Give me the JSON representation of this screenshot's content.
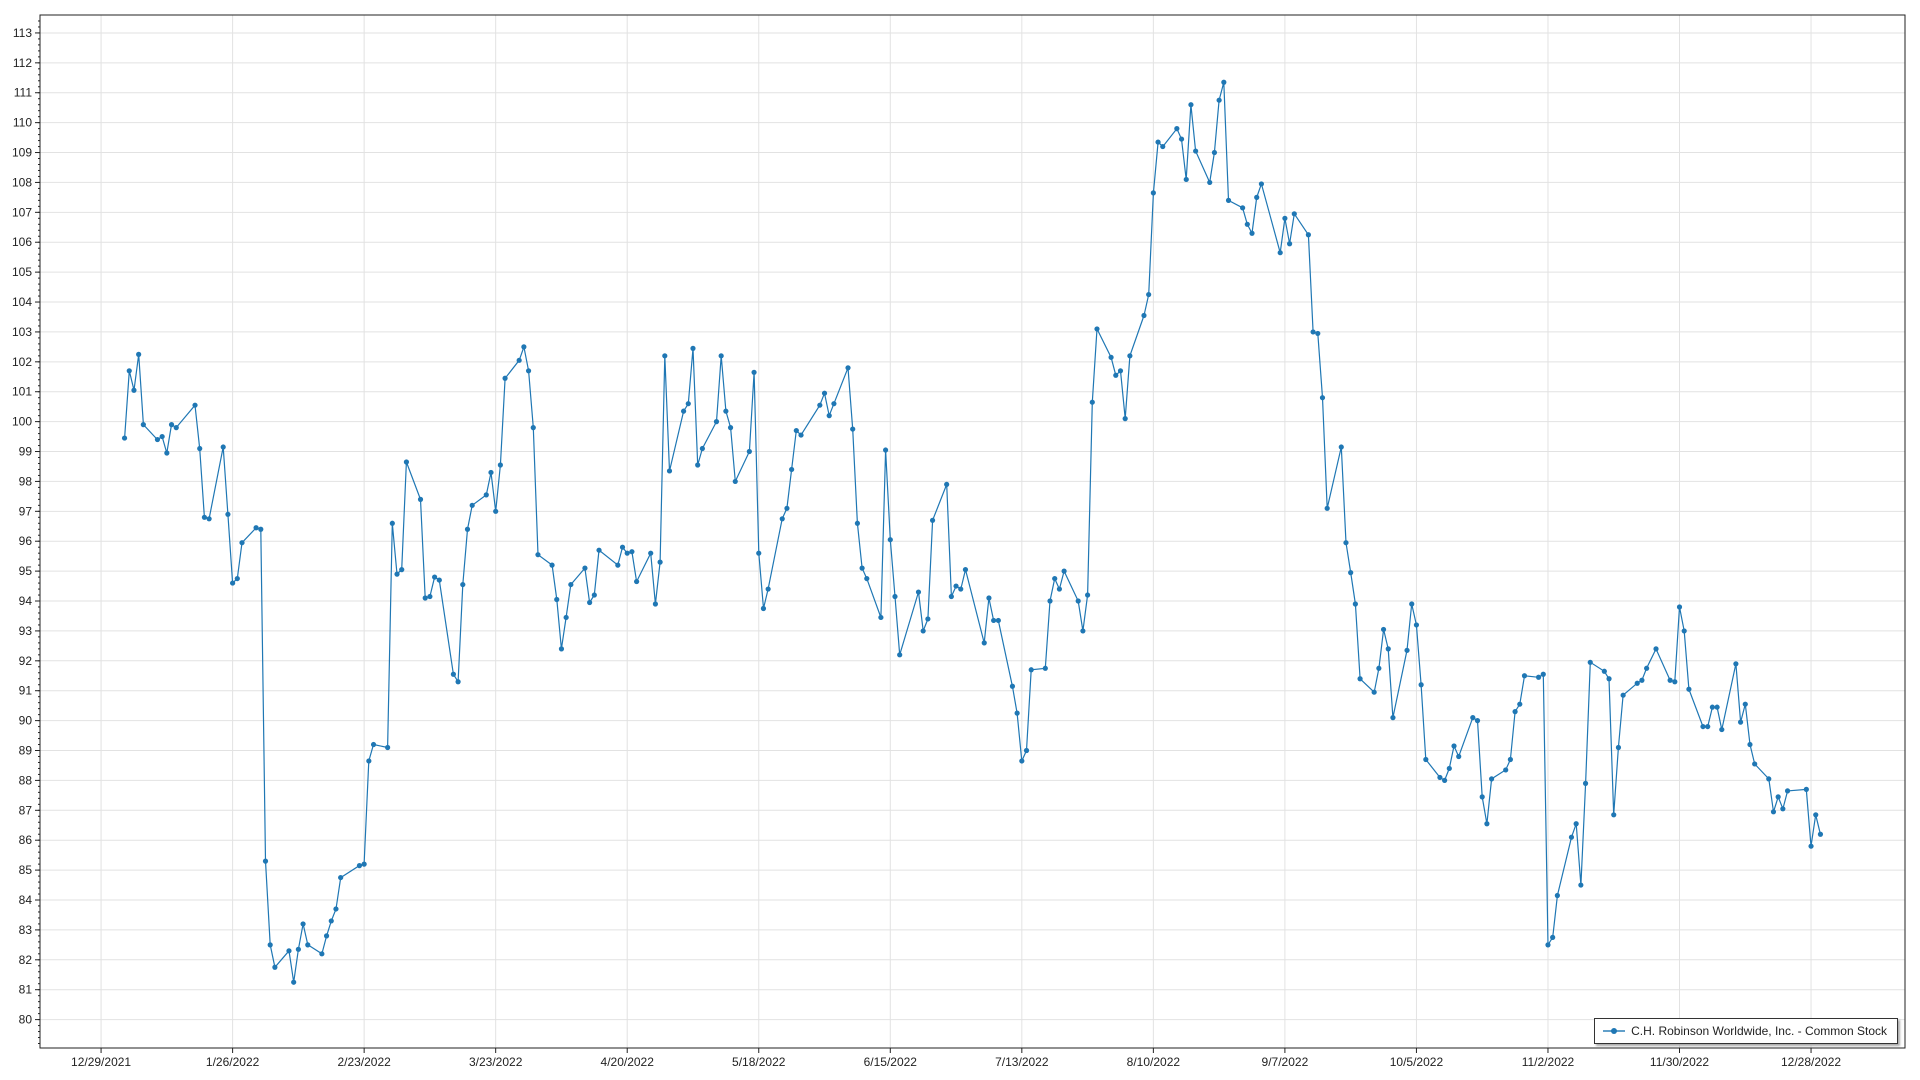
{
  "chart_data": {
    "type": "line",
    "title": "",
    "xlabel": "",
    "ylabel": "",
    "xlim": [
      "2021-12-16",
      "2023-01-17"
    ],
    "ylim": [
      79.05,
      113.6
    ],
    "x_tick_labels": [
      "12/29/2021",
      "1/26/2022",
      "2/23/2022",
      "3/23/2022",
      "4/20/2022",
      "5/18/2022",
      "6/15/2022",
      "7/13/2022",
      "8/10/2022",
      "9/7/2022",
      "10/5/2022",
      "11/2/2022",
      "11/30/2022",
      "12/28/2022"
    ],
    "x_tick_dates": [
      "2021-12-29",
      "2022-01-26",
      "2022-02-23",
      "2022-03-23",
      "2022-04-20",
      "2022-05-18",
      "2022-06-15",
      "2022-07-13",
      "2022-08-10",
      "2022-09-07",
      "2022-10-05",
      "2022-11-02",
      "2022-11-30",
      "2022-12-28"
    ],
    "y_ticks": [
      80,
      81,
      82,
      83,
      84,
      85,
      86,
      87,
      88,
      89,
      90,
      91,
      92,
      93,
      94,
      95,
      96,
      97,
      98,
      99,
      100,
      101,
      102,
      103,
      104,
      105,
      106,
      107,
      108,
      109,
      110,
      111,
      112,
      113
    ],
    "grid": true,
    "legend_position": "bottom-right",
    "series": [
      {
        "name": "C.H. Robinson Worldwide, Inc. - Common Stock",
        "color": "#1f77b4",
        "marker": "circle",
        "points": [
          [
            "2022-01-03",
            99.45
          ],
          [
            "2022-01-04",
            101.7
          ],
          [
            "2022-01-05",
            101.05
          ],
          [
            "2022-01-06",
            102.25
          ],
          [
            "2022-01-07",
            99.9
          ],
          [
            "2022-01-10",
            99.4
          ],
          [
            "2022-01-11",
            99.5
          ],
          [
            "2022-01-12",
            98.95
          ],
          [
            "2022-01-13",
            99.9
          ],
          [
            "2022-01-14",
            99.8
          ],
          [
            "2022-01-18",
            100.55
          ],
          [
            "2022-01-19",
            99.1
          ],
          [
            "2022-01-20",
            96.8
          ],
          [
            "2022-01-21",
            96.75
          ],
          [
            "2022-01-24",
            99.15
          ],
          [
            "2022-01-25",
            96.9
          ],
          [
            "2022-01-26",
            94.6
          ],
          [
            "2022-01-27",
            94.75
          ],
          [
            "2022-01-28",
            95.95
          ],
          [
            "2022-01-31",
            96.45
          ],
          [
            "2022-02-01",
            96.4
          ],
          [
            "2022-02-02",
            85.3
          ],
          [
            "2022-02-03",
            82.5
          ],
          [
            "2022-02-04",
            81.75
          ],
          [
            "2022-02-07",
            82.3
          ],
          [
            "2022-02-08",
            81.25
          ],
          [
            "2022-02-09",
            82.35
          ],
          [
            "2022-02-10",
            83.2
          ],
          [
            "2022-02-11",
            82.5
          ],
          [
            "2022-02-14",
            82.2
          ],
          [
            "2022-02-15",
            82.8
          ],
          [
            "2022-02-16",
            83.3
          ],
          [
            "2022-02-17",
            83.7
          ],
          [
            "2022-02-18",
            84.75
          ],
          [
            "2022-02-22",
            85.15
          ],
          [
            "2022-02-23",
            85.2
          ],
          [
            "2022-02-24",
            88.65
          ],
          [
            "2022-02-25",
            89.2
          ],
          [
            "2022-02-28",
            89.1
          ],
          [
            "2022-03-01",
            96.6
          ],
          [
            "2022-03-02",
            94.9
          ],
          [
            "2022-03-03",
            95.05
          ],
          [
            "2022-03-04",
            98.65
          ],
          [
            "2022-03-07",
            97.4
          ],
          [
            "2022-03-08",
            94.1
          ],
          [
            "2022-03-09",
            94.15
          ],
          [
            "2022-03-10",
            94.8
          ],
          [
            "2022-03-11",
            94.7
          ],
          [
            "2022-03-14",
            91.55
          ],
          [
            "2022-03-15",
            91.3
          ],
          [
            "2022-03-16",
            94.55
          ],
          [
            "2022-03-17",
            96.4
          ],
          [
            "2022-03-18",
            97.2
          ],
          [
            "2022-03-21",
            97.55
          ],
          [
            "2022-03-22",
            98.3
          ],
          [
            "2022-03-23",
            97.0
          ],
          [
            "2022-03-24",
            98.55
          ],
          [
            "2022-03-25",
            101.45
          ],
          [
            "2022-03-28",
            102.05
          ],
          [
            "2022-03-29",
            102.5
          ],
          [
            "2022-03-30",
            101.7
          ],
          [
            "2022-03-31",
            99.8
          ],
          [
            "2022-04-01",
            95.55
          ],
          [
            "2022-04-04",
            95.2
          ],
          [
            "2022-04-05",
            94.05
          ],
          [
            "2022-04-06",
            92.4
          ],
          [
            "2022-04-07",
            93.45
          ],
          [
            "2022-04-08",
            94.55
          ],
          [
            "2022-04-11",
            95.1
          ],
          [
            "2022-04-12",
            93.95
          ],
          [
            "2022-04-13",
            94.2
          ],
          [
            "2022-04-14",
            95.7
          ],
          [
            "2022-04-18",
            95.2
          ],
          [
            "2022-04-19",
            95.8
          ],
          [
            "2022-04-20",
            95.6
          ],
          [
            "2022-04-21",
            95.65
          ],
          [
            "2022-04-22",
            94.65
          ],
          [
            "2022-04-25",
            95.6
          ],
          [
            "2022-04-26",
            93.9
          ],
          [
            "2022-04-27",
            95.3
          ],
          [
            "2022-04-28",
            102.2
          ],
          [
            "2022-04-29",
            98.35
          ],
          [
            "2022-05-02",
            100.35
          ],
          [
            "2022-05-03",
            100.6
          ],
          [
            "2022-05-04",
            102.45
          ],
          [
            "2022-05-05",
            98.55
          ],
          [
            "2022-05-06",
            99.1
          ],
          [
            "2022-05-09",
            100.0
          ],
          [
            "2022-05-10",
            102.2
          ],
          [
            "2022-05-11",
            100.35
          ],
          [
            "2022-05-12",
            99.8
          ],
          [
            "2022-05-13",
            98.0
          ],
          [
            "2022-05-16",
            99.0
          ],
          [
            "2022-05-17",
            101.65
          ],
          [
            "2022-05-18",
            95.6
          ],
          [
            "2022-05-19",
            93.75
          ],
          [
            "2022-05-20",
            94.4
          ],
          [
            "2022-05-23",
            96.75
          ],
          [
            "2022-05-24",
            97.1
          ],
          [
            "2022-05-25",
            98.4
          ],
          [
            "2022-05-26",
            99.7
          ],
          [
            "2022-05-27",
            99.55
          ],
          [
            "2022-05-31",
            100.55
          ],
          [
            "2022-06-01",
            100.95
          ],
          [
            "2022-06-02",
            100.2
          ],
          [
            "2022-06-03",
            100.6
          ],
          [
            "2022-06-06",
            101.8
          ],
          [
            "2022-06-07",
            99.75
          ],
          [
            "2022-06-08",
            96.6
          ],
          [
            "2022-06-09",
            95.1
          ],
          [
            "2022-06-10",
            94.75
          ],
          [
            "2022-06-13",
            93.45
          ],
          [
            "2022-06-14",
            99.05
          ],
          [
            "2022-06-15",
            96.05
          ],
          [
            "2022-06-16",
            94.15
          ],
          [
            "2022-06-17",
            92.2
          ],
          [
            "2022-06-21",
            94.3
          ],
          [
            "2022-06-22",
            93.0
          ],
          [
            "2022-06-23",
            93.4
          ],
          [
            "2022-06-24",
            96.7
          ],
          [
            "2022-06-27",
            97.9
          ],
          [
            "2022-06-28",
            94.15
          ],
          [
            "2022-06-29",
            94.5
          ],
          [
            "2022-06-30",
            94.4
          ],
          [
            "2022-07-01",
            95.05
          ],
          [
            "2022-07-05",
            92.6
          ],
          [
            "2022-07-06",
            94.1
          ],
          [
            "2022-07-07",
            93.35
          ],
          [
            "2022-07-08",
            93.35
          ],
          [
            "2022-07-11",
            91.15
          ],
          [
            "2022-07-12",
            90.25
          ],
          [
            "2022-07-13",
            88.65
          ],
          [
            "2022-07-14",
            89.0
          ],
          [
            "2022-07-15",
            91.7
          ],
          [
            "2022-07-18",
            91.75
          ],
          [
            "2022-07-19",
            94.0
          ],
          [
            "2022-07-20",
            94.75
          ],
          [
            "2022-07-21",
            94.4
          ],
          [
            "2022-07-22",
            95.0
          ],
          [
            "2022-07-25",
            94.0
          ],
          [
            "2022-07-26",
            93.0
          ],
          [
            "2022-07-27",
            94.2
          ],
          [
            "2022-07-28",
            100.65
          ],
          [
            "2022-07-29",
            103.1
          ],
          [
            "2022-08-01",
            102.15
          ],
          [
            "2022-08-02",
            101.55
          ],
          [
            "2022-08-03",
            101.7
          ],
          [
            "2022-08-04",
            100.1
          ],
          [
            "2022-08-05",
            102.2
          ],
          [
            "2022-08-08",
            103.55
          ],
          [
            "2022-08-09",
            104.25
          ],
          [
            "2022-08-10",
            107.65
          ],
          [
            "2022-08-11",
            109.35
          ],
          [
            "2022-08-12",
            109.2
          ],
          [
            "2022-08-15",
            109.8
          ],
          [
            "2022-08-16",
            109.45
          ],
          [
            "2022-08-17",
            108.1
          ],
          [
            "2022-08-18",
            110.6
          ],
          [
            "2022-08-19",
            109.05
          ],
          [
            "2022-08-22",
            108.0
          ],
          [
            "2022-08-23",
            109.0
          ],
          [
            "2022-08-24",
            110.75
          ],
          [
            "2022-08-25",
            111.35
          ],
          [
            "2022-08-26",
            107.4
          ],
          [
            "2022-08-29",
            107.15
          ],
          [
            "2022-08-30",
            106.6
          ],
          [
            "2022-08-31",
            106.3
          ],
          [
            "2022-09-01",
            107.5
          ],
          [
            "2022-09-02",
            107.95
          ],
          [
            "2022-09-06",
            105.65
          ],
          [
            "2022-09-07",
            106.8
          ],
          [
            "2022-09-08",
            105.95
          ],
          [
            "2022-09-09",
            106.95
          ],
          [
            "2022-09-12",
            106.25
          ],
          [
            "2022-09-13",
            103.0
          ],
          [
            "2022-09-14",
            102.95
          ],
          [
            "2022-09-15",
            100.8
          ],
          [
            "2022-09-16",
            97.1
          ],
          [
            "2022-09-19",
            99.15
          ],
          [
            "2022-09-20",
            95.95
          ],
          [
            "2022-09-21",
            94.95
          ],
          [
            "2022-09-22",
            93.9
          ],
          [
            "2022-09-23",
            91.4
          ],
          [
            "2022-09-26",
            90.95
          ],
          [
            "2022-09-27",
            91.75
          ],
          [
            "2022-09-28",
            93.05
          ],
          [
            "2022-09-29",
            92.4
          ],
          [
            "2022-09-30",
            90.1
          ],
          [
            "2022-10-03",
            92.35
          ],
          [
            "2022-10-04",
            93.9
          ],
          [
            "2022-10-05",
            93.2
          ],
          [
            "2022-10-06",
            91.2
          ],
          [
            "2022-10-07",
            88.7
          ],
          [
            "2022-10-10",
            88.1
          ],
          [
            "2022-10-11",
            88.0
          ],
          [
            "2022-10-12",
            88.4
          ],
          [
            "2022-10-13",
            89.15
          ],
          [
            "2022-10-14",
            88.8
          ],
          [
            "2022-10-17",
            90.1
          ],
          [
            "2022-10-18",
            90.0
          ],
          [
            "2022-10-19",
            87.45
          ],
          [
            "2022-10-20",
            86.55
          ],
          [
            "2022-10-21",
            88.05
          ],
          [
            "2022-10-24",
            88.35
          ],
          [
            "2022-10-25",
            88.7
          ],
          [
            "2022-10-26",
            90.3
          ],
          [
            "2022-10-27",
            90.55
          ],
          [
            "2022-10-28",
            91.5
          ],
          [
            "2022-10-31",
            91.45
          ],
          [
            "2022-11-01",
            91.55
          ],
          [
            "2022-11-02",
            82.5
          ],
          [
            "2022-11-03",
            82.75
          ],
          [
            "2022-11-04",
            84.15
          ],
          [
            "2022-11-07",
            86.1
          ],
          [
            "2022-11-08",
            86.55
          ],
          [
            "2022-11-09",
            84.5
          ],
          [
            "2022-11-10",
            87.9
          ],
          [
            "2022-11-11",
            91.95
          ],
          [
            "2022-11-14",
            91.65
          ],
          [
            "2022-11-15",
            91.4
          ],
          [
            "2022-11-16",
            86.85
          ],
          [
            "2022-11-17",
            89.1
          ],
          [
            "2022-11-18",
            90.85
          ],
          [
            "2022-11-21",
            91.25
          ],
          [
            "2022-11-22",
            91.35
          ],
          [
            "2022-11-23",
            91.75
          ],
          [
            "2022-11-25",
            92.4
          ],
          [
            "2022-11-28",
            91.35
          ],
          [
            "2022-11-29",
            91.3
          ],
          [
            "2022-11-30",
            93.8
          ],
          [
            "2022-12-01",
            93.0
          ],
          [
            "2022-12-02",
            91.05
          ],
          [
            "2022-12-05",
            89.8
          ],
          [
            "2022-12-06",
            89.8
          ],
          [
            "2022-12-07",
            90.45
          ],
          [
            "2022-12-08",
            90.45
          ],
          [
            "2022-12-09",
            89.7
          ],
          [
            "2022-12-12",
            91.9
          ],
          [
            "2022-12-13",
            89.95
          ],
          [
            "2022-12-14",
            90.55
          ],
          [
            "2022-12-15",
            89.2
          ],
          [
            "2022-12-16",
            88.55
          ],
          [
            "2022-12-19",
            88.05
          ],
          [
            "2022-12-20",
            86.95
          ],
          [
            "2022-12-21",
            87.45
          ],
          [
            "2022-12-22",
            87.05
          ],
          [
            "2022-12-23",
            87.65
          ],
          [
            "2022-12-27",
            87.7
          ],
          [
            "2022-12-28",
            85.8
          ],
          [
            "2022-12-29",
            86.85
          ],
          [
            "2022-12-30",
            86.2
          ]
        ]
      }
    ]
  },
  "legend": {
    "label": "C.H. Robinson Worldwide, Inc. - Common Stock"
  }
}
